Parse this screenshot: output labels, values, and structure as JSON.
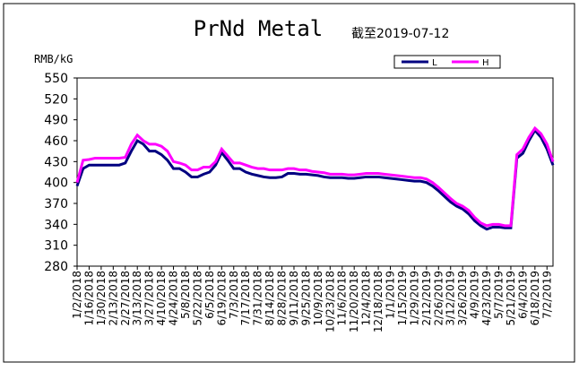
{
  "chart_data": {
    "type": "line",
    "title": "PrNd Metal",
    "subtitle": "截至2019-07-12",
    "y_label": "RMB/kG",
    "categories": [
      "1/2/2018",
      null,
      "1/16/2018",
      null,
      "1/30/2018",
      null,
      "2/13/2018",
      null,
      "2/27/2018",
      null,
      "3/13/2018",
      null,
      "3/27/2018",
      null,
      "4/10/2018",
      null,
      "4/24/2018",
      null,
      "5/8/2018",
      null,
      "5/22/2018",
      null,
      "6/5/2018",
      null,
      "6/19/2018",
      null,
      "7/3/2018",
      null,
      "7/17/2018",
      null,
      "7/31/2018",
      null,
      "8/14/2018",
      null,
      "8/28/2018",
      null,
      "9/11/2018",
      null,
      "9/25/2018",
      null,
      "10/9/2018",
      null,
      "10/23/2018",
      null,
      "11/6/2018",
      null,
      "11/20/2018",
      null,
      "12/4/2018",
      null,
      "12/18/2018",
      null,
      "1/1/2019",
      null,
      "1/15/2019",
      null,
      "1/29/2019",
      null,
      "2/12/2019",
      null,
      "2/26/2019",
      null,
      "3/12/2019",
      null,
      "3/26/2019",
      null,
      "4/9/2019",
      null,
      "4/23/2019",
      null,
      "5/7/2019",
      null,
      "5/21/2019",
      null,
      "6/4/2019",
      null,
      "6/18/2019",
      null,
      "7/2/2019",
      null
    ],
    "series": [
      {
        "name": "L",
        "color": "#000080",
        "values": [
          395,
          420,
          425,
          425,
          425,
          425,
          425,
          425,
          428,
          445,
          460,
          455,
          445,
          445,
          440,
          432,
          420,
          420,
          415,
          408,
          408,
          412,
          415,
          425,
          443,
          432,
          420,
          420,
          415,
          412,
          410,
          408,
          407,
          407,
          408,
          413,
          413,
          412,
          412,
          411,
          410,
          408,
          407,
          407,
          407,
          406,
          406,
          407,
          408,
          408,
          408,
          407,
          406,
          405,
          404,
          403,
          402,
          402,
          400,
          395,
          388,
          380,
          372,
          366,
          362,
          355,
          345,
          338,
          333,
          336,
          336,
          335,
          335,
          435,
          442,
          460,
          475,
          465,
          448,
          425
        ]
      },
      {
        "name": "H",
        "color": "#ff00ff",
        "values": [
          400,
          432,
          433,
          435,
          435,
          435,
          435,
          435,
          436,
          455,
          468,
          460,
          455,
          455,
          452,
          445,
          430,
          428,
          425,
          418,
          418,
          422,
          422,
          430,
          448,
          438,
          428,
          428,
          425,
          422,
          420,
          420,
          418,
          418,
          418,
          420,
          420,
          418,
          418,
          416,
          415,
          414,
          412,
          412,
          412,
          411,
          411,
          412,
          413,
          413,
          413,
          412,
          411,
          410,
          409,
          408,
          407,
          407,
          405,
          400,
          393,
          385,
          377,
          370,
          366,
          360,
          350,
          342,
          338,
          340,
          340,
          338,
          338,
          440,
          448,
          465,
          478,
          470,
          455,
          430
        ]
      }
    ],
    "ylim": [
      280,
      550
    ],
    "yticks": [
      280,
      310,
      340,
      370,
      400,
      430,
      460,
      490,
      520,
      550
    ],
    "grid": false
  }
}
